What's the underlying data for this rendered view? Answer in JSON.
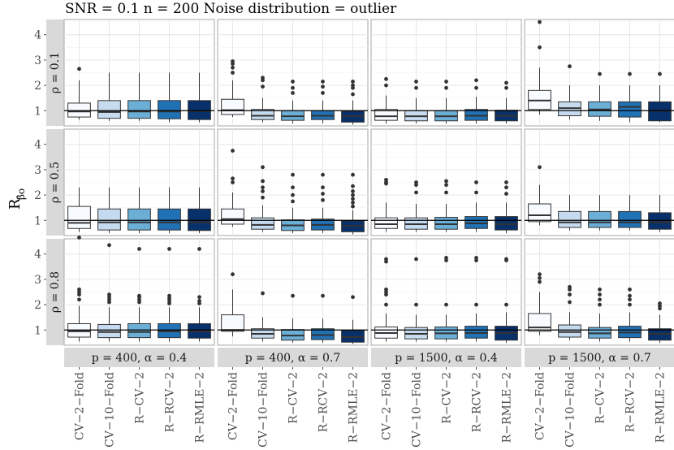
{
  "chart_data": {
    "type": "boxplot",
    "title": "SNR = 0.1 n = 200 Noise distribution = outlier",
    "ylabel": "R_β0 (hat)",
    "ylabel_main": "R",
    "ylabel_sub": "β̂o",
    "reference_line": 1,
    "ylim": [
      0.4,
      4.6
    ],
    "yticks": [
      1,
      2,
      3,
      4
    ],
    "methods": [
      "CV−2−Fold",
      "CV−10−Fold",
      "R−CV−2",
      "R−RCV−2",
      "R−RMLE−2"
    ],
    "method_colors": [
      "#f7fbff",
      "#c6dbef",
      "#6baed6",
      "#2171b5",
      "#08306b"
    ],
    "row_labels": [
      "ρ = 0.1",
      "ρ = 0.5",
      "ρ = 0.8"
    ],
    "col_labels": [
      "p = 400, α = 0.4",
      "p = 400, α = 0.7",
      "p = 1500, α = 0.4",
      "p = 1500, α = 0.7"
    ],
    "panels": [
      [
        {
          "boxes": [
            {
              "min": 0.65,
              "q1": 0.75,
              "med": 0.97,
              "q3": 1.3,
              "max": 2.2,
              "out": [
                2.65
              ]
            },
            {
              "min": 0.6,
              "q1": 0.7,
              "med": 0.95,
              "q3": 1.4,
              "max": 2.5,
              "out": []
            },
            {
              "min": 0.6,
              "q1": 0.7,
              "med": 0.97,
              "q3": 1.4,
              "max": 2.5,
              "out": []
            },
            {
              "min": 0.55,
              "q1": 0.68,
              "med": 0.97,
              "q3": 1.4,
              "max": 2.5,
              "out": []
            },
            {
              "min": 0.55,
              "q1": 0.65,
              "med": 0.98,
              "q3": 1.4,
              "max": 2.5,
              "out": []
            }
          ]
        },
        {
          "boxes": [
            {
              "min": 0.75,
              "q1": 0.85,
              "med": 1.02,
              "q3": 1.45,
              "max": 2.2,
              "out": [
                2.5,
                2.7,
                2.85,
                2.95
              ]
            },
            {
              "min": 0.55,
              "q1": 0.65,
              "med": 0.8,
              "q3": 1.05,
              "max": 1.5,
              "out": [
                1.95,
                2.2,
                2.3
              ]
            },
            {
              "min": 0.5,
              "q1": 0.62,
              "med": 0.78,
              "q3": 1.0,
              "max": 1.4,
              "out": [
                1.7,
                1.9,
                2.15
              ]
            },
            {
              "min": 0.5,
              "q1": 0.65,
              "med": 0.8,
              "q3": 1.0,
              "max": 1.4,
              "out": [
                1.7,
                1.95,
                2.15
              ]
            },
            {
              "min": 0.45,
              "q1": 0.55,
              "med": 0.78,
              "q3": 0.98,
              "max": 1.4,
              "out": [
                1.65,
                1.9,
                2.0,
                2.15
              ]
            }
          ]
        },
        {
          "boxes": [
            {
              "min": 0.5,
              "q1": 0.62,
              "med": 0.78,
              "q3": 1.05,
              "max": 1.6,
              "out": [
                2.0,
                2.25
              ]
            },
            {
              "min": 0.5,
              "q1": 0.6,
              "med": 0.78,
              "q3": 1.0,
              "max": 1.5,
              "out": [
                1.9,
                2.15
              ]
            },
            {
              "min": 0.5,
              "q1": 0.6,
              "med": 0.78,
              "q3": 1.0,
              "max": 1.5,
              "out": [
                1.9,
                2.15
              ]
            },
            {
              "min": 0.5,
              "q1": 0.62,
              "med": 0.8,
              "q3": 1.05,
              "max": 1.55,
              "out": [
                1.9,
                2.2
              ]
            },
            {
              "min": 0.5,
              "q1": 0.6,
              "med": 0.8,
              "q3": 1.02,
              "max": 1.5,
              "out": [
                1.9,
                2.1
              ]
            }
          ]
        },
        {
          "boxes": [
            {
              "min": 0.85,
              "q1": 1.05,
              "med": 1.4,
              "q3": 1.8,
              "max": 2.7,
              "out": [
                3.5,
                4.5
              ]
            },
            {
              "min": 0.65,
              "q1": 0.8,
              "med": 1.1,
              "q3": 1.35,
              "max": 2.0,
              "out": [
                2.75
              ]
            },
            {
              "min": 0.6,
              "q1": 0.78,
              "med": 1.05,
              "q3": 1.35,
              "max": 2.0,
              "out": [
                2.45
              ]
            },
            {
              "min": 0.55,
              "q1": 0.75,
              "med": 1.15,
              "q3": 1.35,
              "max": 2.0,
              "out": [
                2.45
              ]
            },
            {
              "min": 0.55,
              "q1": 0.6,
              "med": 1.0,
              "q3": 1.35,
              "max": 2.0,
              "out": [
                2.45
              ]
            }
          ]
        }
      ],
      [
        {
          "boxes": [
            {
              "min": 0.55,
              "q1": 0.68,
              "med": 0.9,
              "q3": 1.55,
              "max": 2.3,
              "out": []
            },
            {
              "min": 0.5,
              "q1": 0.62,
              "med": 0.92,
              "q3": 1.45,
              "max": 2.3,
              "out": []
            },
            {
              "min": 0.5,
              "q1": 0.62,
              "med": 0.92,
              "q3": 1.45,
              "max": 2.3,
              "out": []
            },
            {
              "min": 0.5,
              "q1": 0.62,
              "med": 0.92,
              "q3": 1.45,
              "max": 2.3,
              "out": []
            },
            {
              "min": 0.5,
              "q1": 0.6,
              "med": 0.92,
              "q3": 1.45,
              "max": 2.3,
              "out": []
            }
          ]
        },
        {
          "boxes": [
            {
              "min": 0.75,
              "q1": 0.85,
              "med": 1.05,
              "q3": 1.45,
              "max": 2.1,
              "out": [
                2.5,
                2.65,
                3.75
              ]
            },
            {
              "min": 0.55,
              "q1": 0.65,
              "med": 0.82,
              "q3": 1.1,
              "max": 1.6,
              "out": [
                1.9,
                2.15,
                2.3,
                2.55,
                3.1
              ]
            },
            {
              "min": 0.5,
              "q1": 0.6,
              "med": 0.8,
              "q3": 1.02,
              "max": 1.5,
              "out": [
                1.75,
                2.0,
                2.3,
                2.8
              ]
            },
            {
              "min": 0.5,
              "q1": 0.62,
              "med": 0.82,
              "q3": 1.05,
              "max": 1.5,
              "out": [
                1.8,
                2.05,
                2.3,
                2.8
              ]
            },
            {
              "min": 0.45,
              "q1": 0.55,
              "med": 0.78,
              "q3": 0.98,
              "max": 1.4,
              "out": [
                1.55,
                1.7,
                1.85,
                2.0,
                2.15,
                2.35,
                2.8
              ]
            }
          ]
        },
        {
          "boxes": [
            {
              "min": 0.55,
              "q1": 0.68,
              "med": 0.85,
              "q3": 1.1,
              "max": 1.7,
              "out": [
                2.45,
                2.5,
                2.6
              ]
            },
            {
              "min": 0.55,
              "q1": 0.65,
              "med": 0.85,
              "q3": 1.1,
              "max": 1.65,
              "out": [
                2.1,
                2.4,
                2.5
              ]
            },
            {
              "min": 0.55,
              "q1": 0.65,
              "med": 0.85,
              "q3": 1.12,
              "max": 1.65,
              "out": [
                2.1,
                2.4,
                2.55
              ]
            },
            {
              "min": 0.55,
              "q1": 0.68,
              "med": 0.88,
              "q3": 1.15,
              "max": 1.7,
              "out": [
                2.1,
                2.5
              ]
            },
            {
              "min": 0.5,
              "q1": 0.62,
              "med": 0.85,
              "q3": 1.15,
              "max": 1.7,
              "out": [
                2.05,
                2.3,
                2.5
              ]
            }
          ]
        },
        {
          "boxes": [
            {
              "min": 0.8,
              "q1": 0.95,
              "med": 1.2,
              "q3": 1.65,
              "max": 2.4,
              "out": [
                3.1
              ]
            },
            {
              "min": 0.6,
              "q1": 0.72,
              "med": 0.92,
              "q3": 1.35,
              "max": 2.0,
              "out": []
            },
            {
              "min": 0.6,
              "q1": 0.72,
              "med": 0.92,
              "q3": 1.35,
              "max": 2.0,
              "out": []
            },
            {
              "min": 0.6,
              "q1": 0.72,
              "med": 0.92,
              "q3": 1.35,
              "max": 2.0,
              "out": []
            },
            {
              "min": 0.55,
              "q1": 0.65,
              "med": 0.92,
              "q3": 1.3,
              "max": 2.0,
              "out": []
            }
          ]
        }
      ],
      [
        {
          "boxes": [
            {
              "min": 0.55,
              "q1": 0.72,
              "med": 0.95,
              "q3": 1.25,
              "max": 1.95,
              "out": [
                2.2,
                2.4,
                2.5,
                2.6,
                4.65
              ]
            },
            {
              "min": 0.55,
              "q1": 0.7,
              "med": 0.92,
              "q3": 1.22,
              "max": 1.9,
              "out": [
                2.1,
                2.2,
                2.3,
                2.4,
                4.35
              ]
            },
            {
              "min": 0.55,
              "q1": 0.7,
              "med": 0.92,
              "q3": 1.25,
              "max": 1.9,
              "out": [
                2.1,
                2.2,
                2.3,
                2.35,
                4.2
              ]
            },
            {
              "min": 0.55,
              "q1": 0.7,
              "med": 0.95,
              "q3": 1.25,
              "max": 1.9,
              "out": [
                2.05,
                2.15,
                2.25,
                2.35,
                4.2
              ]
            },
            {
              "min": 0.55,
              "q1": 0.68,
              "med": 0.95,
              "q3": 1.25,
              "max": 1.9,
              "out": [
                2.05,
                2.15,
                2.3,
                4.2
              ]
            }
          ]
        },
        {
          "boxes": [
            {
              "min": 0.75,
              "q1": 0.95,
              "med": 1.0,
              "q3": 1.6,
              "max": 2.6,
              "out": [
                3.2
              ]
            },
            {
              "min": 0.55,
              "q1": 0.68,
              "med": 0.85,
              "q3": 1.05,
              "max": 1.5,
              "out": [
                2.45
              ]
            },
            {
              "min": 0.5,
              "q1": 0.6,
              "med": 0.78,
              "q3": 1.02,
              "max": 1.45,
              "out": [
                2.35
              ]
            },
            {
              "min": 0.5,
              "q1": 0.62,
              "med": 0.8,
              "q3": 1.05,
              "max": 1.45,
              "out": [
                2.35
              ]
            },
            {
              "min": 0.45,
              "q1": 0.52,
              "med": 0.72,
              "q3": 0.98,
              "max": 1.4,
              "out": [
                2.3
              ]
            }
          ]
        },
        {
          "boxes": [
            {
              "min": 0.55,
              "q1": 0.68,
              "med": 0.88,
              "q3": 1.12,
              "max": 1.65,
              "out": [
                2.0,
                2.4,
                2.5,
                2.6,
                3.7,
                3.8
              ]
            },
            {
              "min": 0.55,
              "q1": 0.65,
              "med": 0.85,
              "q3": 1.1,
              "max": 1.6,
              "out": [
                2.0,
                3.8
              ]
            },
            {
              "min": 0.55,
              "q1": 0.65,
              "med": 0.87,
              "q3": 1.12,
              "max": 1.6,
              "out": [
                2.0,
                3.75,
                3.85
              ]
            },
            {
              "min": 0.55,
              "q1": 0.68,
              "med": 0.88,
              "q3": 1.15,
              "max": 1.65,
              "out": [
                2.0,
                3.75,
                3.85
              ]
            },
            {
              "min": 0.5,
              "q1": 0.6,
              "med": 0.88,
              "q3": 1.15,
              "max": 1.7,
              "out": [
                2.0,
                3.75,
                3.8
              ]
            }
          ]
        },
        {
          "boxes": [
            {
              "min": 0.8,
              "q1": 0.95,
              "med": 1.1,
              "q3": 1.65,
              "max": 2.5,
              "out": [
                2.9,
                3.05,
                3.2
              ]
            },
            {
              "min": 0.6,
              "q1": 0.72,
              "med": 0.92,
              "q3": 1.2,
              "max": 1.7,
              "out": [
                2.1,
                2.4,
                2.6,
                2.7
              ]
            },
            {
              "min": 0.55,
              "q1": 0.68,
              "med": 0.87,
              "q3": 1.1,
              "max": 1.65,
              "out": [
                2.0,
                2.2,
                2.4,
                2.6
              ]
            },
            {
              "min": 0.55,
              "q1": 0.7,
              "med": 0.9,
              "q3": 1.15,
              "max": 1.7,
              "out": [
                2.0,
                2.2,
                2.35,
                2.6
              ]
            },
            {
              "min": 0.5,
              "q1": 0.6,
              "med": 0.85,
              "q3": 1.05,
              "max": 1.6,
              "out": [
                1.85,
                1.95,
                2.05
              ]
            }
          ]
        }
      ]
    ]
  }
}
